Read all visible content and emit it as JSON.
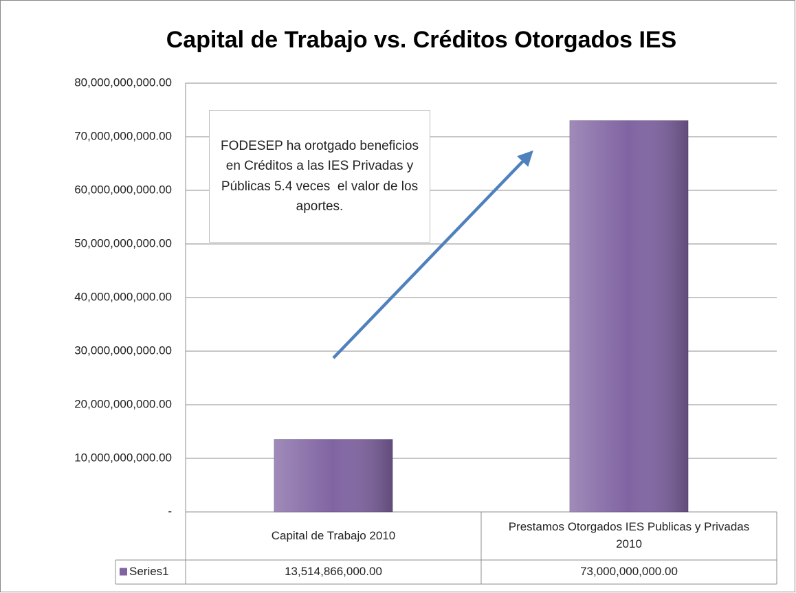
{
  "chart_data": {
    "type": "bar",
    "title": "Capital de Trabajo vs. Créditos Otorgados IES",
    "categories": [
      "Capital de Trabajo 2010",
      "Prestamos Otorgados IES Publicas y Privadas 2010"
    ],
    "series": [
      {
        "name": "Series1",
        "color": "#8064a2",
        "values": [
          13514866000,
          73000000000
        ],
        "value_labels": [
          "13,514,866,000.00",
          "73,000,000,000.00"
        ]
      }
    ],
    "ylim": [
      0,
      80000000000
    ],
    "yticks": [
      {
        "value": 0,
        "label": "-"
      },
      {
        "value": 10000000000,
        "label": "10,000,000,000.00"
      },
      {
        "value": 20000000000,
        "label": "20,000,000,000.00"
      },
      {
        "value": 30000000000,
        "label": "30,000,000,000.00"
      },
      {
        "value": 40000000000,
        "label": "40,000,000,000.00"
      },
      {
        "value": 50000000000,
        "label": "50,000,000,000.00"
      },
      {
        "value": 60000000000,
        "label": "60,000,000,000.00"
      },
      {
        "value": 70000000000,
        "label": "70,000,000,000.00"
      },
      {
        "value": 80000000000,
        "label": "80,000,000,000.00"
      }
    ],
    "grid": true,
    "annotation": "FODESEP ha orotgado beneficios en Créditos a las IES Privadas y Públicas 5.4 veces  el valor de los aportes."
  }
}
